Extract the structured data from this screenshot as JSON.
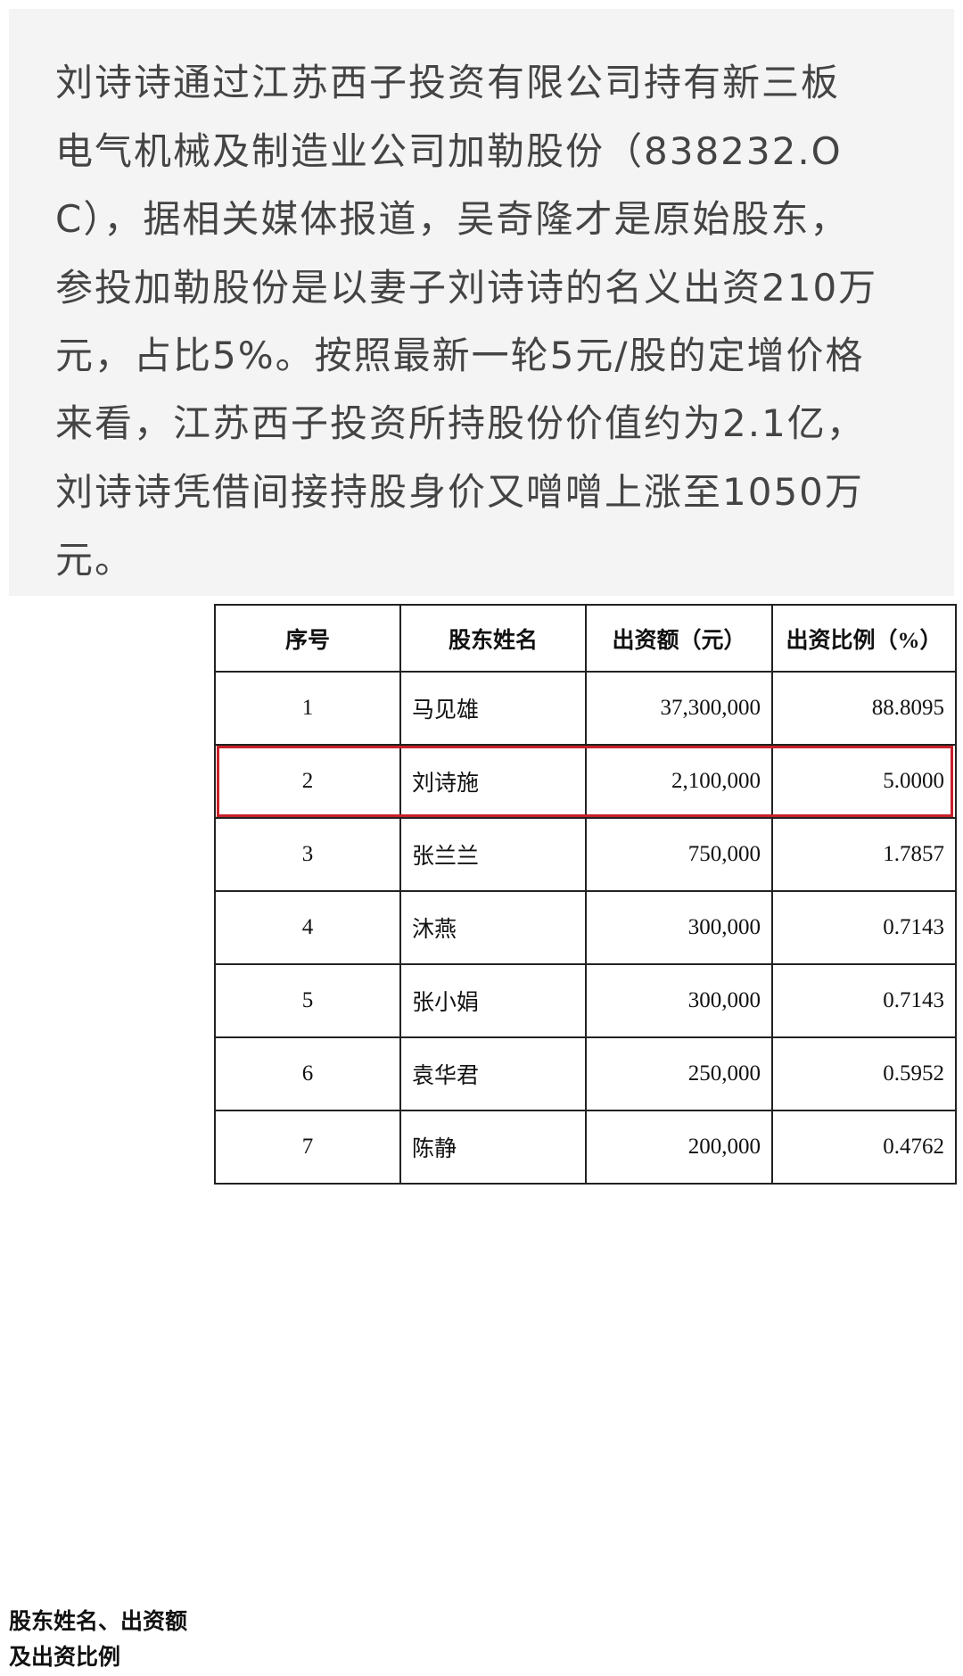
{
  "paragraph": {
    "lines": [
      "刘诗诗通过江苏西子投资有限公司持有新三板",
      "电气机械及制造业公司加勒股份（838232.O",
      "C），据相关媒体报道，吴奇隆才是原始股东，",
      "参投加勒股份是以妻子刘诗诗的名义出资210万",
      "元，占比5%。按照最新一轮5元/股的定增价格",
      "来看，江苏西子投资所持股份价值约为2.1亿，",
      "刘诗诗凭借间接持股身价又噌噌上涨至1050万",
      "元。"
    ]
  },
  "table": {
    "side_label": [
      "股东姓名、出资额",
      "及出资比例"
    ],
    "headers": [
      "序号",
      "股东姓名",
      "出资额（元）",
      "出资比例（%）"
    ],
    "rows": [
      [
        "1",
        "马见雄",
        "37,300,000",
        "88.8095"
      ],
      [
        "2",
        "刘诗施",
        "2,100,000",
        "5.0000"
      ],
      [
        "3",
        "张兰兰",
        "750,000",
        "1.7857"
      ],
      [
        "4",
        "沐燕",
        "300,000",
        "0.7143"
      ],
      [
        "5",
        "张小娟",
        "300,000",
        "0.7143"
      ],
      [
        "6",
        "袁华君",
        "250,000",
        "0.5952"
      ],
      [
        "7",
        "陈静",
        "200,000",
        "0.4762"
      ]
    ],
    "highlighted_row": 2,
    "highlight_color": "#c8202a"
  }
}
